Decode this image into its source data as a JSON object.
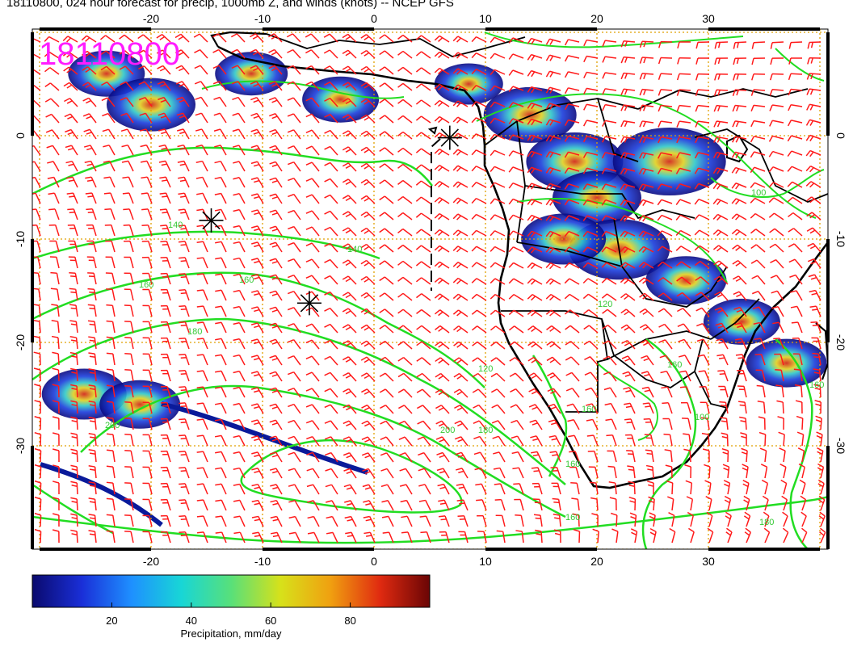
{
  "header": {
    "title": "18110800, 024 hour forecast for precip, 1000mb Z, and winds (knots) -- NCEP GFS"
  },
  "map": {
    "date_stamp": "18110800",
    "lon_range": [
      -30,
      41
    ],
    "lat_range": [
      -40,
      10
    ],
    "lon_ticks": [
      "-20",
      "-10",
      "0",
      "10",
      "20",
      "30"
    ],
    "lat_ticks": [
      "0",
      "-10",
      "-20",
      "-30"
    ],
    "gridline_style": "dotted-orange",
    "colors": {
      "coast": "#000000",
      "contour": "#22dd22",
      "barb": "#ff1a1a",
      "grid": "#e0a000",
      "stamp": "#ff1cff"
    },
    "contour_labels": [
      "140",
      "140",
      "160",
      "160",
      "180",
      "120",
      "200",
      "200",
      "180",
      "160",
      "160",
      "160",
      "120",
      "160",
      "180",
      "160",
      "100",
      "100"
    ],
    "high_markers": [
      {
        "lon": 6.8,
        "lat": -0.2
      },
      {
        "lon": -14.6,
        "lat": -8.2
      },
      {
        "lon": -5.8,
        "lat": -16.2
      }
    ],
    "precip_areas": [
      {
        "lon": -24,
        "lat": 6,
        "intensity": 0.35
      },
      {
        "lon": -20,
        "lat": 3,
        "intensity": 0.5
      },
      {
        "lon": -11,
        "lat": 6,
        "intensity": 0.3
      },
      {
        "lon": -3,
        "lat": 3.5,
        "intensity": 0.35
      },
      {
        "lon": 8.5,
        "lat": 5,
        "intensity": 0.25
      },
      {
        "lon": 14,
        "lat": 2,
        "intensity": 0.55
      },
      {
        "lon": 18,
        "lat": -2.5,
        "intensity": 0.6
      },
      {
        "lon": 20,
        "lat": -6,
        "intensity": 0.5
      },
      {
        "lon": 26.5,
        "lat": -2.5,
        "intensity": 0.8
      },
      {
        "lon": 22,
        "lat": -11,
        "intensity": 0.65
      },
      {
        "lon": 17,
        "lat": -10,
        "intensity": 0.45
      },
      {
        "lon": 28,
        "lat": -14,
        "intensity": 0.4
      },
      {
        "lon": 33,
        "lat": -18,
        "intensity": 0.35
      },
      {
        "lon": 37,
        "lat": -22,
        "intensity": 0.4
      },
      {
        "lon": -26,
        "lat": -25,
        "intensity": 0.45
      },
      {
        "lon": -21,
        "lat": -26,
        "intensity": 0.4
      }
    ]
  },
  "colorbar": {
    "label": "Precipitation, mm/day",
    "range": [
      0,
      100
    ],
    "ticks": [
      "20",
      "40",
      "60",
      "80"
    ],
    "tick_values": [
      20,
      40,
      60,
      80
    ],
    "stops": [
      "#0a0a6e",
      "#1a2fd8",
      "#1e90ff",
      "#18d6d6",
      "#58e07a",
      "#d7e11a",
      "#f0a010",
      "#e02a10",
      "#6a0505"
    ]
  }
}
